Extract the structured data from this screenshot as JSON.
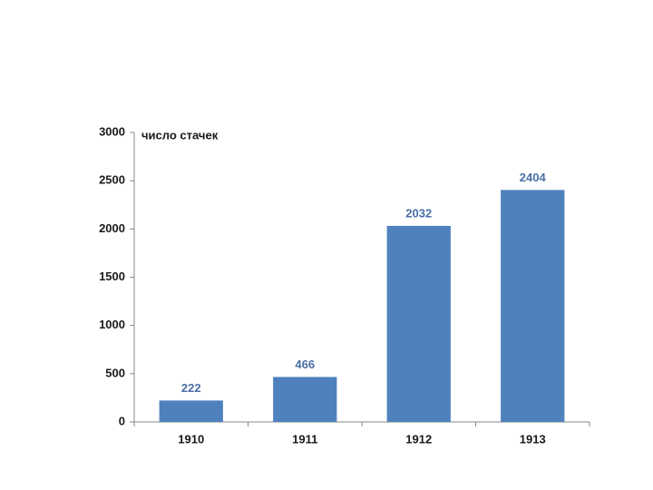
{
  "chart_data": {
    "type": "bar",
    "ylabel": "число стачек",
    "categories": [
      "1910",
      "1911",
      "1912",
      "1913"
    ],
    "values": [
      222,
      466,
      2032,
      2404
    ],
    "color": "#4f81bd",
    "label_color": "#4a6fa5",
    "ylim": [
      0,
      3000
    ],
    "yticks": [
      0,
      500,
      1000,
      1500,
      2000,
      2500,
      3000
    ],
    "grid": false
  }
}
